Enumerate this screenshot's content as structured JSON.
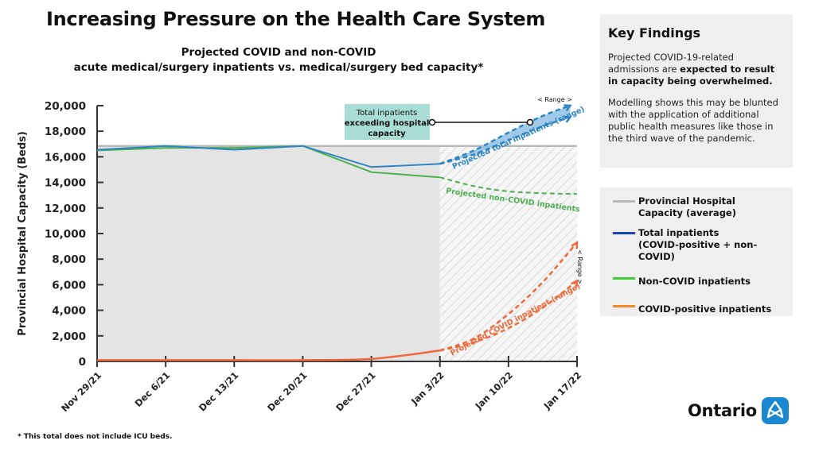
{
  "title": "Increasing Pressure on the Health Care System",
  "subtitle_line1": "Projected COVID and non-COVID",
  "subtitle_line2": "acute medical/surgery inpatients vs. medical/surgery bed capacity*",
  "colors": {
    "capacity": "#b9b9b9",
    "total": "#2e86c1",
    "total_legend": "#1f3fbf",
    "noncovid": "#4caf50",
    "noncovid_legend": "#3ec93e",
    "covid": "#ee6a3c",
    "covid_legend": "#f5892b",
    "shade": "#e4e4e4",
    "callout_bg": "#a8dcd4",
    "ontario_blue": "#1a88d0"
  },
  "chart_data": {
    "type": "line",
    "ylabel": "Provincial Hospital Capacity (Beds)",
    "xlabel": "",
    "ylim": [
      0,
      20000
    ],
    "yticks": [
      0,
      2000,
      4000,
      6000,
      8000,
      10000,
      12000,
      14000,
      16000,
      18000,
      20000
    ],
    "ytick_labels": [
      "0",
      "2,000",
      "4,000",
      "6,000",
      "8,000",
      "10,000",
      "12,000",
      "14,000",
      "16,000",
      "18,000",
      "20,000"
    ],
    "categories": [
      "Nov 29/21",
      "Dec 6/21",
      "Dec 13/21",
      "Dec 20/21",
      "Dec 27/21",
      "Jan 3/22",
      "Jan 10/22",
      "Jan 17/22"
    ],
    "capacity": {
      "name": "Provincial Hospital Capacity (average)",
      "value": 16850
    },
    "series": [
      {
        "name": "Total inpatients (COVID-positive + non-COVID)",
        "x": [
          0,
          1,
          2,
          3,
          4,
          5
        ],
        "values": [
          16550,
          16850,
          16550,
          16850,
          15200,
          15450
        ],
        "projection_low": {
          "x": [
            5,
            5.5,
            6,
            6.5,
            6.9
          ],
          "values": [
            15450,
            16200,
            17300,
            18400,
            19100
          ]
        },
        "projection_high": {
          "x": [
            5,
            5.5,
            6,
            6.5,
            6.9
          ],
          "values": [
            15450,
            16500,
            17900,
            19200,
            20000
          ]
        }
      },
      {
        "name": "Non-COVID inpatients",
        "x": [
          0,
          1,
          2,
          3,
          4,
          5
        ],
        "values": [
          16500,
          16700,
          16700,
          16850,
          14800,
          14400
        ],
        "projection": {
          "x": [
            5,
            5.5,
            6,
            6.5,
            7
          ],
          "values": [
            14400,
            13700,
            13300,
            13150,
            13100
          ]
        }
      },
      {
        "name": "COVID-positive inpatients",
        "x": [
          0,
          1,
          2,
          3,
          4,
          5
        ],
        "values": [
          100,
          100,
          100,
          100,
          200,
          850
        ],
        "projection_low": {
          "x": [
            5,
            5.5,
            6,
            6.5,
            7
          ],
          "values": [
            850,
            1500,
            2600,
            4200,
            6300
          ]
        },
        "projection_high": {
          "x": [
            5,
            5.5,
            6,
            6.5,
            7
          ],
          "values": [
            850,
            1800,
            3700,
            6200,
            9300
          ]
        }
      }
    ],
    "annotations": {
      "callout_line1": "Total inpatients",
      "callout_line2": "exceeding hospital",
      "callout_line3": "capacity",
      "range_label": "Range",
      "range_label2": "Range",
      "total_projection_label": "Projected total inpatients (range)",
      "noncovid_projection_label": "Projected non-COVID inpatients",
      "covid_projection_label": "Projected COVID inpatient (range)"
    }
  },
  "findings": {
    "heading": "Key Findings",
    "p1_pre": "Projected COVID-19-related admissions are ",
    "p1_bold": "expected to result in capacity being overwhelmed.",
    "p2": "Modelling shows this may be blunted with the application of additional public health measures like those in the third wave of the pandemic."
  },
  "legend": {
    "capacity_line1": "Provincial Hospital",
    "capacity_line2": "Capacity (average)",
    "total_line1": "Total inpatients",
    "total_line2": "(COVID-positive + non-COVID)",
    "noncovid": "Non-COVID inpatients",
    "covid": "COVID-positive inpatients"
  },
  "footnote": "* This total does not include ICU beds.",
  "brand": "Ontario"
}
